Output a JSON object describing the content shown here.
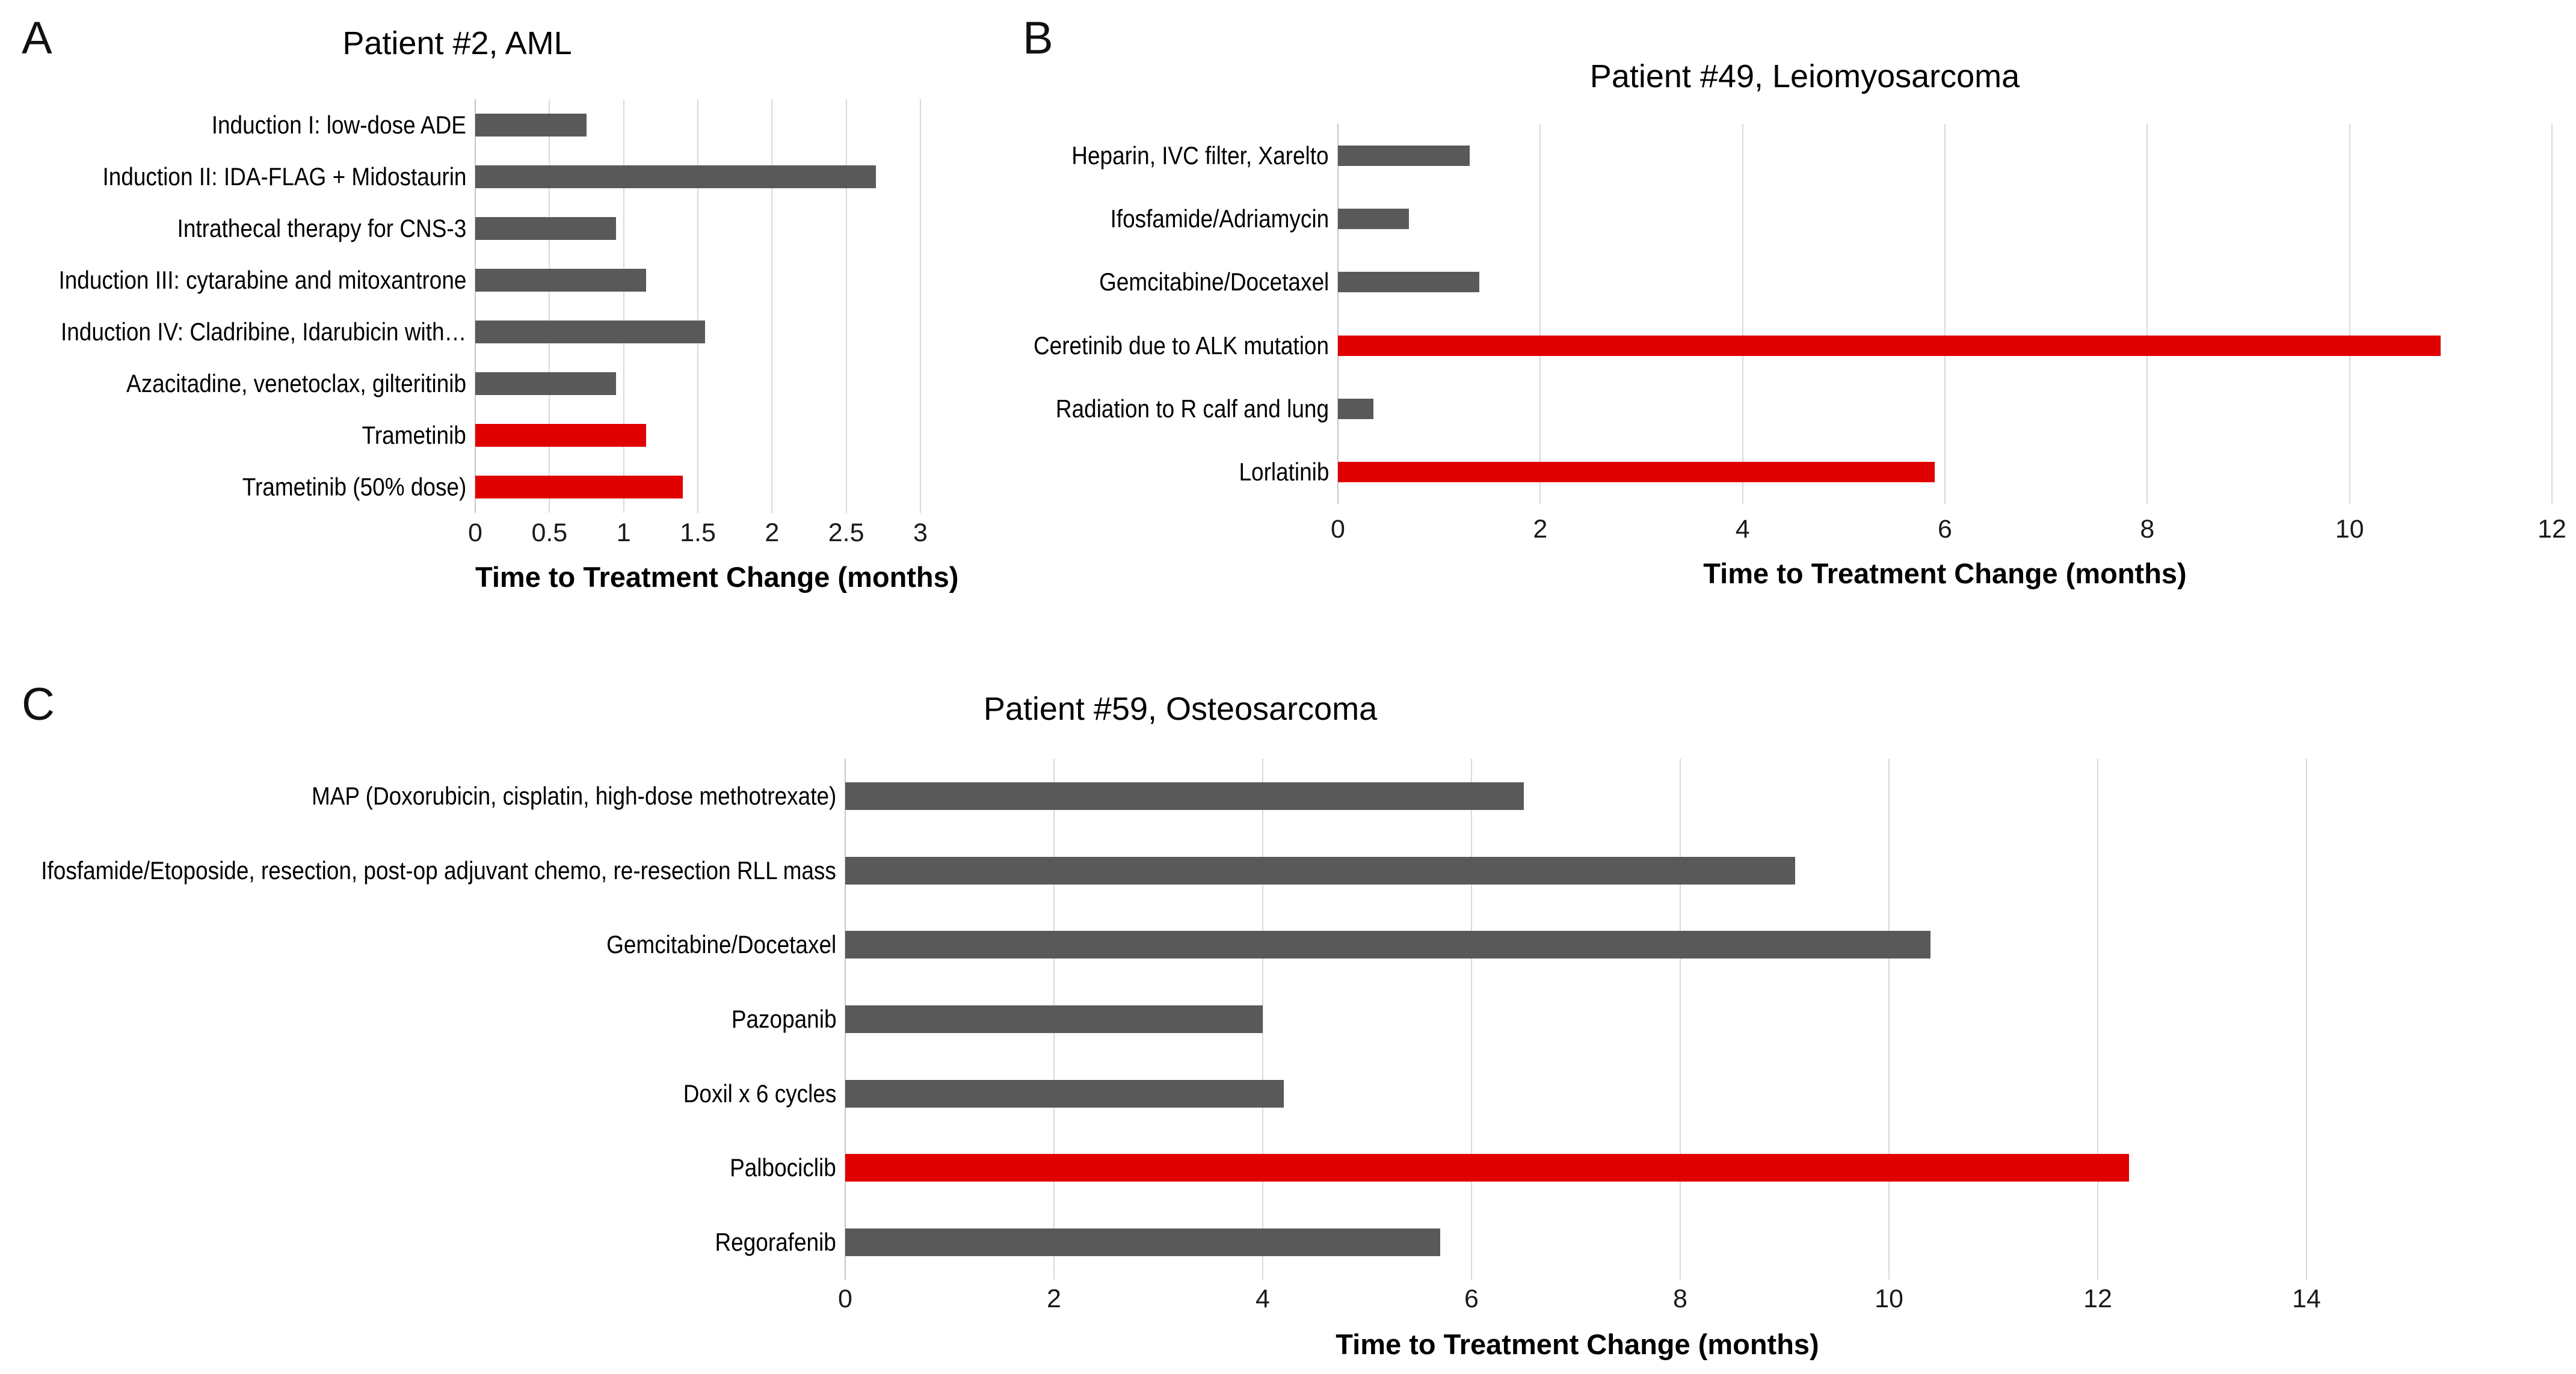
{
  "colors": {
    "bar": "#595959",
    "highlight": "#e00000",
    "gridline": "#d9d9d9",
    "zero_line": "#c6c6c6",
    "text": "#000000"
  },
  "chart_data": [
    {
      "type": "bar",
      "orientation": "horizontal",
      "panel_label": "A",
      "title": "Patient #2, AML",
      "xlabel": "Time to Treatment Change (months)",
      "xlim": [
        0,
        3
      ],
      "xticks": [
        0,
        0.5,
        1,
        1.5,
        2,
        2.5,
        3
      ],
      "xtick_labels": [
        "0",
        "0.5",
        "1",
        "1.5",
        "2",
        "2.5",
        "3"
      ],
      "grid": true,
      "categories": [
        "Induction I: low-dose ADE",
        "Induction II: IDA-FLAG + Midostaurin",
        "Intrathecal therapy for CNS-3",
        "Induction III: cytarabine and mitoxantrone",
        "Induction IV: Cladribine, Idarubicin with…",
        "Azacitadine, venetoclax, gilteritinib",
        "Trametinib",
        "Trametinib (50% dose)"
      ],
      "values": [
        0.75,
        2.7,
        0.95,
        1.15,
        1.55,
        0.95,
        1.15,
        1.4
      ],
      "highlighted": [
        false,
        false,
        false,
        false,
        false,
        false,
        true,
        true
      ]
    },
    {
      "type": "bar",
      "orientation": "horizontal",
      "panel_label": "B",
      "title": "Patient #49, Leiomyosarcoma",
      "xlabel": "Time to Treatment Change (months)",
      "xlim": [
        0,
        12
      ],
      "xticks": [
        0,
        2,
        4,
        6,
        8,
        10,
        12
      ],
      "xtick_labels": [
        "0",
        "2",
        "4",
        "6",
        "8",
        "10",
        "12"
      ],
      "grid": true,
      "categories": [
        "Heparin, IVC filter, Xarelto",
        "Ifosfamide/Adriamycin",
        "Gemcitabine/Docetaxel",
        "Ceretinib due to ALK mutation",
        "Radiation to R calf and lung",
        "Lorlatinib"
      ],
      "values": [
        1.3,
        0.7,
        1.4,
        10.9,
        0.35,
        5.9
      ],
      "highlighted": [
        false,
        false,
        false,
        true,
        false,
        true
      ]
    },
    {
      "type": "bar",
      "orientation": "horizontal",
      "panel_label": "C",
      "title": "Patient #59, Osteosarcoma",
      "xlabel": "Time to Treatment Change (months)",
      "xlim": [
        0,
        16
      ],
      "xticks": [
        0,
        2,
        4,
        6,
        8,
        10,
        12,
        14
      ],
      "xtick_labels": [
        "0",
        "2",
        "4",
        "6",
        "8",
        "10",
        "12",
        "14"
      ],
      "grid": true,
      "categories": [
        "MAP (Doxorubicin, cisplatin, high-dose methotrexate)",
        "Ifosfamide/Etoposide, resection, post-op adjuvant chemo, re-resection RLL mass",
        "Gemcitabine/Docetaxel",
        "Pazopanib",
        "Doxil x 6 cycles",
        "Palbociclib",
        "Regorafenib"
      ],
      "values": [
        6.5,
        9.1,
        10.4,
        4.0,
        4.2,
        12.3,
        5.7
      ],
      "highlighted": [
        false,
        false,
        false,
        false,
        false,
        true,
        false
      ]
    }
  ]
}
